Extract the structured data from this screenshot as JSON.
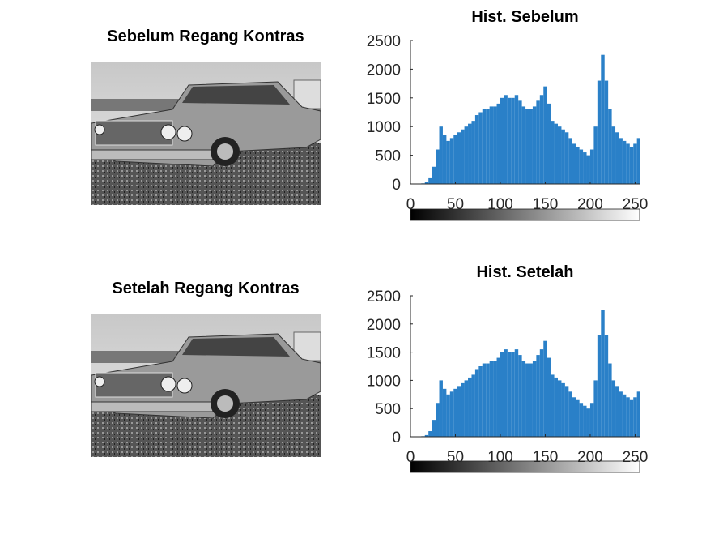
{
  "images": [
    {
      "title": "Sebelum Regang Kontras"
    },
    {
      "title": "Setelah Regang Kontras"
    }
  ],
  "chart_data": [
    {
      "type": "bar",
      "title": "Hist. Sebelum",
      "color": "#2a80c8",
      "x": [
        0,
        4,
        8,
        12,
        16,
        20,
        24,
        28,
        32,
        36,
        40,
        44,
        48,
        52,
        56,
        60,
        64,
        68,
        72,
        76,
        80,
        84,
        88,
        92,
        96,
        100,
        104,
        108,
        112,
        116,
        120,
        124,
        128,
        132,
        136,
        140,
        144,
        148,
        152,
        156,
        160,
        164,
        168,
        172,
        176,
        180,
        184,
        188,
        192,
        196,
        200,
        204,
        208,
        212,
        216,
        220,
        224,
        228,
        232,
        236,
        240,
        244,
        248,
        252
      ],
      "values": [
        0,
        0,
        0,
        10,
        30,
        100,
        300,
        600,
        1000,
        850,
        750,
        800,
        850,
        900,
        950,
        1000,
        1050,
        1100,
        1200,
        1250,
        1300,
        1300,
        1350,
        1350,
        1400,
        1500,
        1550,
        1500,
        1500,
        1550,
        1450,
        1350,
        1300,
        1300,
        1350,
        1450,
        1550,
        1700,
        1400,
        1100,
        1050,
        1000,
        950,
        900,
        800,
        700,
        650,
        600,
        550,
        500,
        600,
        1000,
        1800,
        2250,
        1800,
        1300,
        1000,
        900,
        800,
        750,
        700,
        650,
        700,
        800
      ],
      "xlim": [
        0,
        255
      ],
      "xticks": [
        0,
        50,
        100,
        150,
        200,
        250
      ],
      "ylim": [
        0,
        2500
      ],
      "yticks": [
        0,
        500,
        1000,
        1500,
        2000,
        2500
      ]
    },
    {
      "type": "bar",
      "title": "Hist. Setelah",
      "color": "#2a80c8",
      "x": [
        0,
        4,
        8,
        12,
        16,
        20,
        24,
        28,
        32,
        36,
        40,
        44,
        48,
        52,
        56,
        60,
        64,
        68,
        72,
        76,
        80,
        84,
        88,
        92,
        96,
        100,
        104,
        108,
        112,
        116,
        120,
        124,
        128,
        132,
        136,
        140,
        144,
        148,
        152,
        156,
        160,
        164,
        168,
        172,
        176,
        180,
        184,
        188,
        192,
        196,
        200,
        204,
        208,
        212,
        216,
        220,
        224,
        228,
        232,
        236,
        240,
        244,
        248,
        252
      ],
      "values": [
        0,
        0,
        0,
        10,
        30,
        100,
        300,
        600,
        1000,
        850,
        750,
        800,
        850,
        900,
        950,
        1000,
        1050,
        1100,
        1200,
        1250,
        1300,
        1300,
        1350,
        1350,
        1400,
        1500,
        1550,
        1500,
        1500,
        1550,
        1450,
        1350,
        1300,
        1300,
        1350,
        1450,
        1550,
        1700,
        1400,
        1100,
        1050,
        1000,
        950,
        900,
        800,
        700,
        650,
        600,
        550,
        500,
        600,
        1000,
        1800,
        2250,
        1800,
        1300,
        1000,
        900,
        800,
        750,
        700,
        650,
        700,
        800
      ],
      "xlim": [
        0,
        255
      ],
      "xticks": [
        0,
        50,
        100,
        150,
        200,
        250
      ],
      "ylim": [
        0,
        2500
      ],
      "yticks": [
        0,
        500,
        1000,
        1500,
        2000,
        2500
      ]
    }
  ]
}
